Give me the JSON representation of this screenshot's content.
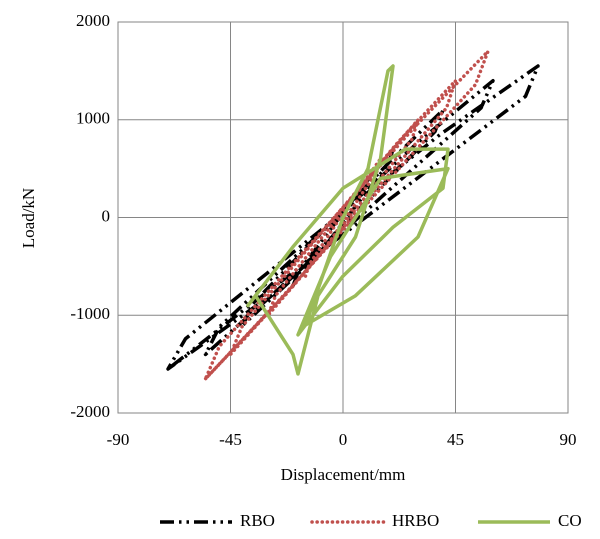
{
  "chart_data": {
    "type": "line",
    "xlabel": "Displacement/mm",
    "ylabel": "Load/kN",
    "xlim": [
      -90,
      90
    ],
    "ylim": [
      -2000,
      2000
    ],
    "xticks": [
      -90,
      -45,
      0,
      45,
      90
    ],
    "yticks": [
      -2000,
      -1000,
      0,
      1000,
      2000
    ],
    "grid": true,
    "legend": "bottom",
    "series": [
      {
        "name": "RBO",
        "color": "#000000",
        "x": [
          -20,
          -18,
          10,
          20,
          18.4,
          -10,
          -40,
          -36,
          20,
          40,
          36.8,
          -20,
          -55,
          -49.5,
          30,
          60,
          55.2,
          -27.5,
          -70,
          -63,
          39,
          78,
          73,
          -35,
          -70
        ],
        "values": [
          -700,
          -560,
          385,
          700,
          560,
          -385,
          -1100,
          -880,
          605,
          1100,
          880,
          -605,
          -1400,
          -1120,
          770,
          1400,
          1120,
          -770,
          -1550,
          -1240,
          852,
          1550,
          1240,
          -852,
          -1550
        ]
      },
      {
        "name": "HRBO",
        "color": "#c0504d",
        "x": [
          -15,
          -13.5,
          7.5,
          15,
          13.8,
          -7.5,
          -30,
          -27,
          15,
          30,
          27.6,
          -15,
          -45,
          -40.5,
          22,
          45,
          41.4,
          -22.5,
          -55,
          -49.5,
          29,
          58,
          53,
          -27.5,
          -55
        ],
        "values": [
          -600,
          -480,
          330,
          600,
          480,
          -330,
          -1000,
          -800,
          550,
          1000,
          800,
          -550,
          -1400,
          -1120,
          770,
          1400,
          1120,
          -770,
          -1650,
          -1320,
          935,
          1700,
          1360,
          -900,
          -1650
        ]
      },
      {
        "name": "CO",
        "color": "#9bbb59",
        "x": [
          0,
          10,
          18,
          20,
          15,
          5,
          -10,
          -18,
          -20,
          -35,
          -38,
          -20,
          0,
          25,
          42,
          40,
          20,
          0,
          -18,
          -5,
          15,
          42,
          30,
          5,
          -15,
          0
        ],
        "values": [
          0,
          500,
          1500,
          1550,
          600,
          -200,
          -800,
          -1600,
          -1400,
          -800,
          -900,
          -300,
          300,
          700,
          700,
          300,
          -100,
          -600,
          -1200,
          -400,
          400,
          500,
          -200,
          -800,
          -1100,
          0
        ]
      }
    ]
  }
}
